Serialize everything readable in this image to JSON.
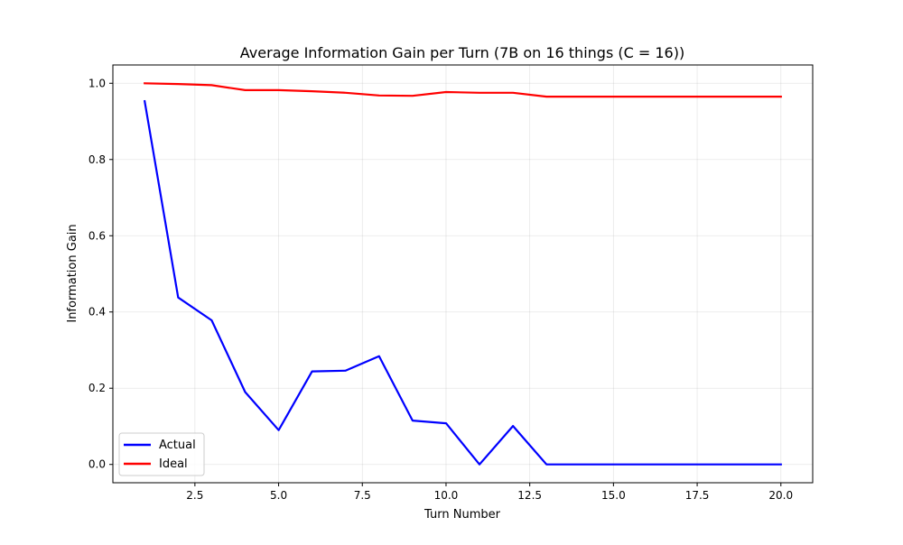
{
  "chart_data": {
    "type": "line",
    "title": "Average Information Gain per Turn (7B on 16 things (C = 16))",
    "xlabel": "Turn Number",
    "ylabel": "Information Gain",
    "xlim": [
      0.05,
      20.95
    ],
    "ylim": [
      -0.048,
      1.048
    ],
    "xticks": [
      2.5,
      5.0,
      7.5,
      10.0,
      12.5,
      15.0,
      17.5,
      20.0
    ],
    "xtick_labels": [
      "2.5",
      "5.0",
      "7.5",
      "10.0",
      "12.5",
      "15.0",
      "17.5",
      "20.0"
    ],
    "yticks": [
      0.0,
      0.2,
      0.4,
      0.6,
      0.8,
      1.0
    ],
    "ytick_labels": [
      "0.0",
      "0.2",
      "0.4",
      "0.6",
      "0.8",
      "1.0"
    ],
    "grid": true,
    "legend_position": "lower-left",
    "x": [
      1,
      2,
      3,
      4,
      5,
      6,
      7,
      8,
      9,
      10,
      11,
      12,
      13,
      14,
      15,
      16,
      17,
      18,
      19,
      20
    ],
    "series": [
      {
        "name": "Actual",
        "color": "#0000ff",
        "values": [
          0.953,
          0.438,
          0.378,
          0.19,
          0.09,
          0.244,
          0.246,
          0.284,
          0.115,
          0.108,
          0.0,
          0.101,
          0.0,
          0.0,
          0.0,
          0.0,
          0.0,
          0.0,
          0.0,
          0.0
        ]
      },
      {
        "name": "Ideal",
        "color": "#ff0000",
        "values": [
          1.0,
          0.998,
          0.995,
          0.982,
          0.982,
          0.979,
          0.975,
          0.968,
          0.967,
          0.977,
          0.975,
          0.975,
          0.965,
          0.965,
          0.965,
          0.965,
          0.965,
          0.965,
          0.965,
          0.965
        ]
      }
    ]
  }
}
